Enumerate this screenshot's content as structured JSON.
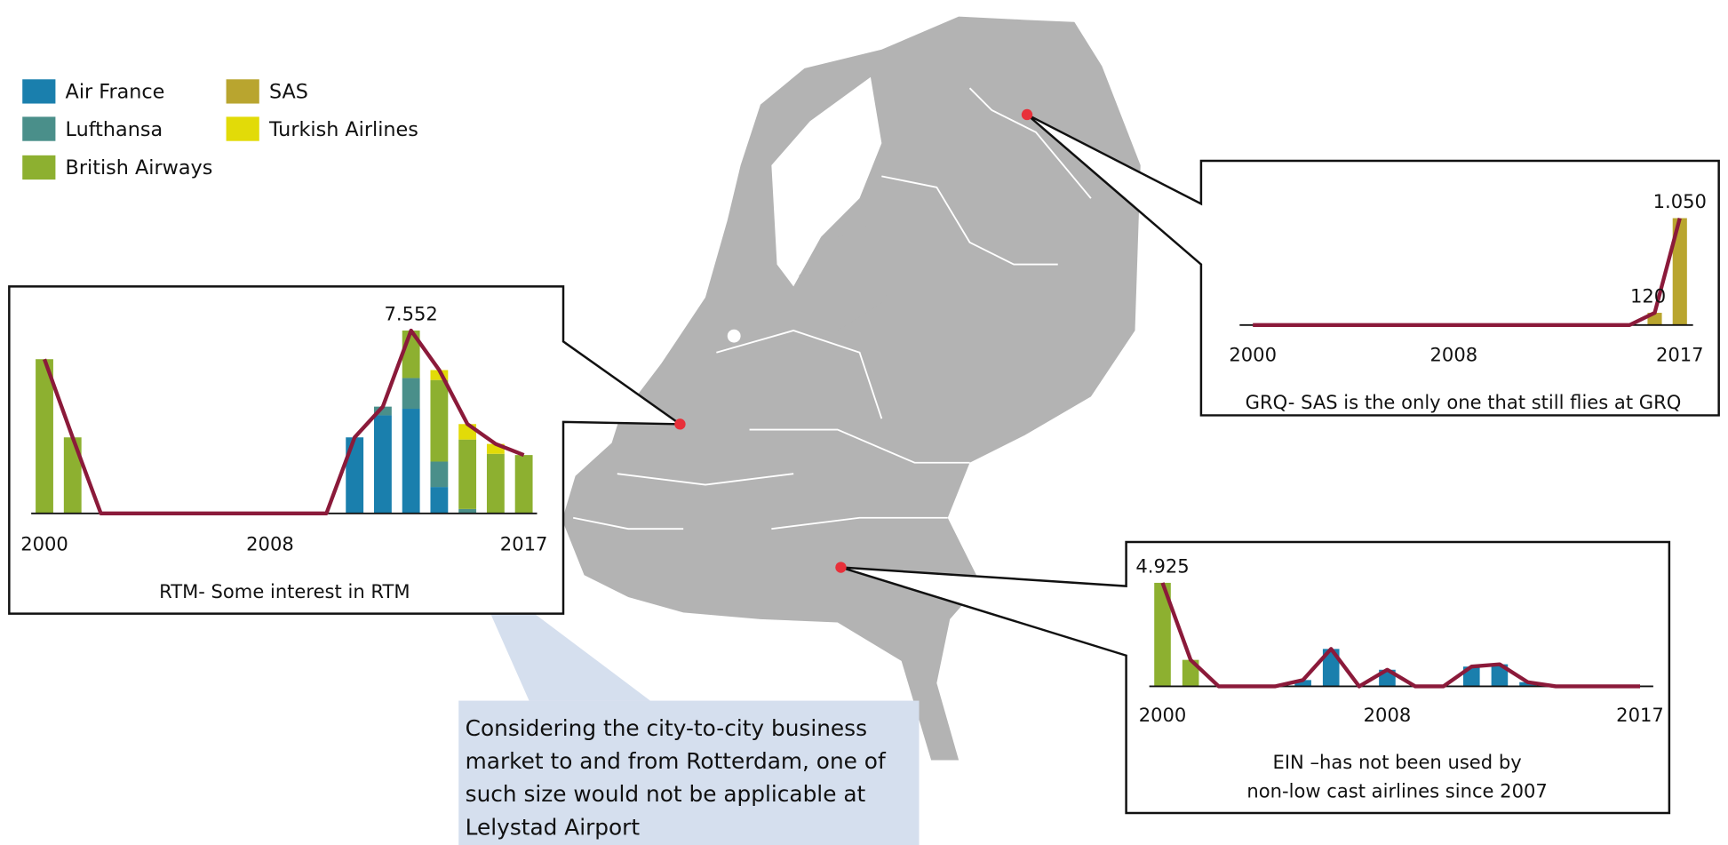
{
  "chart_data": [
    {
      "type": "bar",
      "caption": [
        "RTM- Some interest in RTM"
      ],
      "categories": [
        "2000",
        null,
        null,
        null,
        null,
        null,
        null,
        null,
        "2008",
        null,
        null,
        null,
        null,
        null,
        null,
        null,
        null,
        "2017"
      ],
      "series": [
        {
          "name": "Air France",
          "color": "#1a7fad",
          "values": [
            0,
            0,
            0,
            0,
            0,
            0,
            0,
            0,
            0,
            0,
            0,
            3140,
            4050,
            4322,
            1090,
            0,
            0,
            0
          ]
        },
        {
          "name": "Lufthansa",
          "color": "#4a8f8a",
          "values": [
            0,
            0,
            0,
            0,
            0,
            0,
            0,
            0,
            0,
            0,
            0,
            0,
            360,
            1270,
            1050,
            180,
            0,
            0
          ]
        },
        {
          "name": "British Airways",
          "color": "#8db030",
          "values": [
            6370,
            3140,
            0,
            0,
            0,
            0,
            0,
            0,
            0,
            0,
            0,
            0,
            0,
            1960,
            3370,
            2870,
            2460,
            2410
          ]
        },
        {
          "name": "SAS",
          "color": "#b9a52f",
          "values": [
            0,
            0,
            0,
            0,
            0,
            0,
            0,
            0,
            0,
            0,
            0,
            0,
            0,
            0,
            0,
            0,
            0,
            0
          ]
        },
        {
          "name": "Turkish Airlines",
          "color": "#e2db08",
          "values": [
            0,
            0,
            0,
            0,
            0,
            0,
            0,
            0,
            0,
            0,
            0,
            0,
            0,
            0,
            410,
            640,
            410,
            0
          ]
        }
      ],
      "line": {
        "color": "#8b1a3a",
        "values": [
          6370,
          3140,
          0,
          0,
          0,
          0,
          0,
          0,
          0,
          0,
          0,
          3140,
          4410,
          7552,
          5920,
          3690,
          2870,
          2410
        ]
      },
      "value_labels": [
        null,
        null,
        null,
        null,
        null,
        null,
        null,
        null,
        null,
        null,
        null,
        null,
        null,
        "7.552",
        null,
        null,
        null,
        null
      ],
      "ylim": [
        0,
        8000
      ]
    },
    {
      "type": "bar",
      "caption": [
        "GRQ- SAS is the only one that still flies at GRQ"
      ],
      "categories": [
        "2000",
        null,
        null,
        null,
        null,
        null,
        null,
        null,
        "2008",
        null,
        null,
        null,
        null,
        null,
        null,
        null,
        null,
        "2017"
      ],
      "series": [
        {
          "name": "Air France",
          "color": "#1a7fad",
          "values": [
            0,
            0,
            0,
            0,
            0,
            0,
            0,
            0,
            0,
            0,
            0,
            0,
            0,
            0,
            0,
            0,
            0,
            0
          ]
        },
        {
          "name": "Lufthansa",
          "color": "#4a8f8a",
          "values": [
            0,
            0,
            0,
            0,
            0,
            0,
            0,
            0,
            0,
            0,
            0,
            0,
            0,
            0,
            0,
            0,
            0,
            0
          ]
        },
        {
          "name": "British Airways",
          "color": "#8db030",
          "values": [
            0,
            0,
            0,
            0,
            0,
            0,
            0,
            0,
            0,
            0,
            0,
            0,
            0,
            0,
            0,
            0,
            0,
            0
          ]
        },
        {
          "name": "SAS",
          "color": "#b9a52f",
          "values": [
            0,
            0,
            0,
            0,
            0,
            0,
            0,
            0,
            0,
            0,
            0,
            0,
            0,
            0,
            0,
            0,
            120,
            1050
          ]
        },
        {
          "name": "Turkish Airlines",
          "color": "#e2db08",
          "values": [
            0,
            0,
            0,
            0,
            0,
            0,
            0,
            0,
            0,
            0,
            0,
            0,
            0,
            0,
            0,
            0,
            0,
            0
          ]
        }
      ],
      "line": {
        "color": "#8b1a3a",
        "values": [
          0,
          0,
          0,
          0,
          0,
          0,
          0,
          0,
          0,
          0,
          0,
          0,
          0,
          0,
          0,
          0,
          120,
          1050
        ]
      },
      "value_labels": [
        null,
        null,
        null,
        null,
        null,
        null,
        null,
        null,
        null,
        null,
        null,
        null,
        null,
        null,
        null,
        null,
        "120",
        "1.050"
      ],
      "ylim": [
        0,
        1100
      ]
    },
    {
      "type": "bar",
      "caption": [
        "EIN –has not been used by",
        "non-low cast airlines since 2007"
      ],
      "categories": [
        "2000",
        null,
        null,
        null,
        null,
        null,
        null,
        null,
        "2008",
        null,
        null,
        null,
        null,
        null,
        null,
        null,
        null,
        "2017"
      ],
      "series": [
        {
          "name": "Air France",
          "color": "#1a7fad",
          "values": [
            0,
            0,
            0,
            0,
            0,
            300,
            1780,
            0,
            790,
            0,
            0,
            940,
            1050,
            200,
            0,
            0,
            0,
            0
          ]
        },
        {
          "name": "Lufthansa",
          "color": "#4a8f8a",
          "values": [
            0,
            0,
            0,
            0,
            0,
            0,
            0,
            0,
            0,
            0,
            0,
            0,
            0,
            0,
            0,
            0,
            0,
            0
          ]
        },
        {
          "name": "British Airways",
          "color": "#8db030",
          "values": [
            4925,
            1260,
            0,
            0,
            0,
            0,
            0,
            0,
            0,
            0,
            0,
            0,
            0,
            0,
            0,
            0,
            0,
            0
          ]
        },
        {
          "name": "SAS",
          "color": "#b9a52f",
          "values": [
            0,
            0,
            0,
            0,
            0,
            0,
            0,
            0,
            0,
            0,
            0,
            0,
            0,
            0,
            0,
            0,
            0,
            0
          ]
        },
        {
          "name": "Turkish Airlines",
          "color": "#e2db08",
          "values": [
            0,
            0,
            0,
            0,
            0,
            0,
            0,
            0,
            0,
            0,
            0,
            0,
            0,
            0,
            0,
            0,
            0,
            0
          ]
        }
      ],
      "line": {
        "color": "#8b1a3a",
        "values": [
          4925,
          1260,
          0,
          0,
          0,
          300,
          1780,
          0,
          790,
          0,
          0,
          940,
          1050,
          200,
          0,
          0,
          0,
          0
        ]
      },
      "value_labels": [
        "4.925",
        null,
        null,
        null,
        null,
        null,
        null,
        null,
        null,
        null,
        null,
        null,
        null,
        null,
        null,
        null,
        null,
        null
      ],
      "ylim": [
        0,
        5000
      ]
    }
  ],
  "callout": [
    "Considering the city-to-city business",
    "market to and from Rotterdam, one of",
    "such size would not be applicable at",
    "Lelystad Airport"
  ]
}
